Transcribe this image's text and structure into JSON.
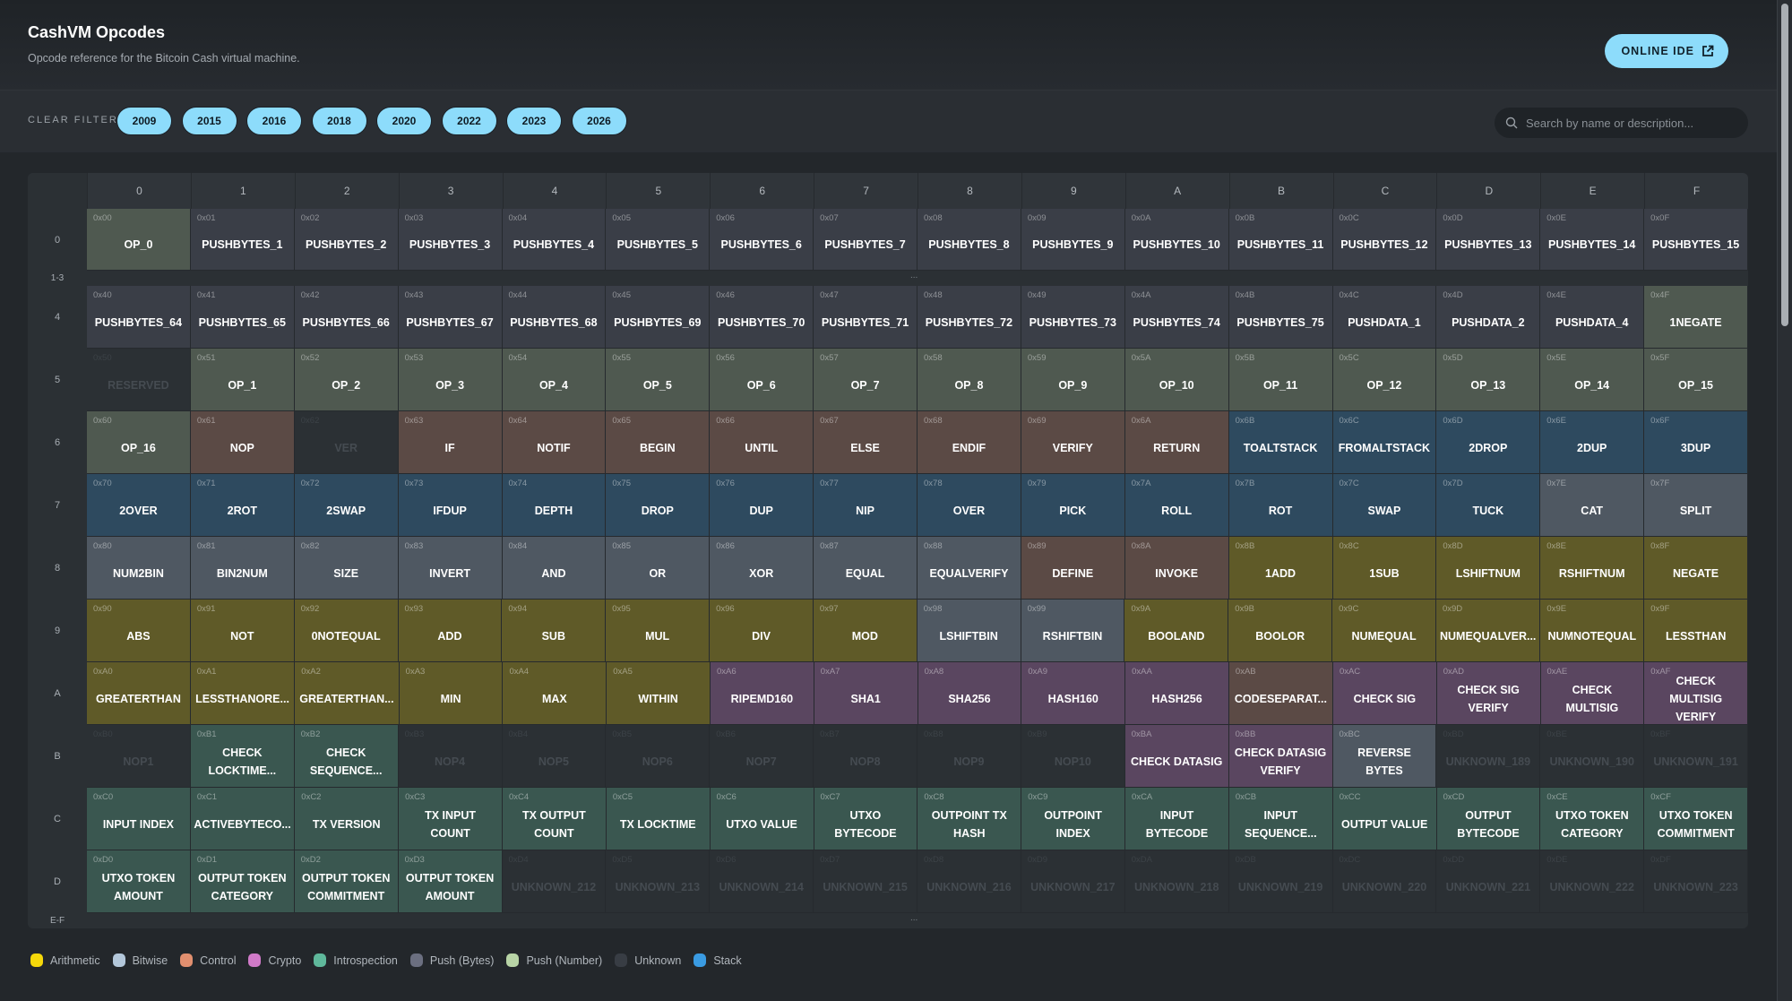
{
  "header": {
    "title": "CashVM Opcodes",
    "subtitle": "Opcode reference for the Bitcoin Cash virtual machine.",
    "ide_label": "ONLINE IDE",
    "ide_icon": "external-link-icon"
  },
  "filter": {
    "clear_label": "CLEAR FILTER",
    "years": [
      "2009",
      "2015",
      "2016",
      "2018",
      "2020",
      "2022",
      "2023",
      "2026"
    ],
    "search_placeholder": "Search by name or description..."
  },
  "columns": [
    "0",
    "1",
    "2",
    "3",
    "4",
    "5",
    "6",
    "7",
    "8",
    "9",
    "A",
    "B",
    "C",
    "D",
    "E",
    "F"
  ],
  "gaps": {
    "g1": "1-3",
    "g2": "E-F",
    "dots": "..."
  },
  "category_colors": {
    "pushbytes": "#3a3e47",
    "pushnum": "#4f5950",
    "control": "#5b4a45",
    "stack": "#2e4a5f",
    "bitwise": "#4f5862",
    "arith": "#5f5a28",
    "crypto": "#5a4660",
    "intro": "#3a5750",
    "unknown": "#2b3034"
  },
  "rows": [
    {
      "label": "0",
      "cells": [
        [
          "0x00",
          "OP_0",
          "pushnum"
        ],
        [
          "0x01",
          "PUSHBYTES_1",
          "pushbytes"
        ],
        [
          "0x02",
          "PUSHBYTES_2",
          "pushbytes"
        ],
        [
          "0x03",
          "PUSHBYTES_3",
          "pushbytes"
        ],
        [
          "0x04",
          "PUSHBYTES_4",
          "pushbytes"
        ],
        [
          "0x05",
          "PUSHBYTES_5",
          "pushbytes"
        ],
        [
          "0x06",
          "PUSHBYTES_6",
          "pushbytes"
        ],
        [
          "0x07",
          "PUSHBYTES_7",
          "pushbytes"
        ],
        [
          "0x08",
          "PUSHBYTES_8",
          "pushbytes"
        ],
        [
          "0x09",
          "PUSHBYTES_9",
          "pushbytes"
        ],
        [
          "0x0A",
          "PUSHBYTES_10",
          "pushbytes"
        ],
        [
          "0x0B",
          "PUSHBYTES_11",
          "pushbytes"
        ],
        [
          "0x0C",
          "PUSHBYTES_12",
          "pushbytes"
        ],
        [
          "0x0D",
          "PUSHBYTES_13",
          "pushbytes"
        ],
        [
          "0x0E",
          "PUSHBYTES_14",
          "pushbytes"
        ],
        [
          "0x0F",
          "PUSHBYTES_15",
          "pushbytes"
        ]
      ]
    },
    {
      "label": "4",
      "cells": [
        [
          "0x40",
          "PUSHBYTES_64",
          "pushbytes"
        ],
        [
          "0x41",
          "PUSHBYTES_65",
          "pushbytes"
        ],
        [
          "0x42",
          "PUSHBYTES_66",
          "pushbytes"
        ],
        [
          "0x43",
          "PUSHBYTES_67",
          "pushbytes"
        ],
        [
          "0x44",
          "PUSHBYTES_68",
          "pushbytes"
        ],
        [
          "0x45",
          "PUSHBYTES_69",
          "pushbytes"
        ],
        [
          "0x46",
          "PUSHBYTES_70",
          "pushbytes"
        ],
        [
          "0x47",
          "PUSHBYTES_71",
          "pushbytes"
        ],
        [
          "0x48",
          "PUSHBYTES_72",
          "pushbytes"
        ],
        [
          "0x49",
          "PUSHBYTES_73",
          "pushbytes"
        ],
        [
          "0x4A",
          "PUSHBYTES_74",
          "pushbytes"
        ],
        [
          "0x4B",
          "PUSHBYTES_75",
          "pushbytes"
        ],
        [
          "0x4C",
          "PUSHDATA_1",
          "pushbytes"
        ],
        [
          "0x4D",
          "PUSHDATA_2",
          "pushbytes"
        ],
        [
          "0x4E",
          "PUSHDATA_4",
          "pushbytes"
        ],
        [
          "0x4F",
          "1NEGATE",
          "pushnum"
        ]
      ]
    },
    {
      "label": "5",
      "cells": [
        [
          "0x50",
          "RESERVED",
          "unknown"
        ],
        [
          "0x51",
          "OP_1",
          "pushnum"
        ],
        [
          "0x52",
          "OP_2",
          "pushnum"
        ],
        [
          "0x53",
          "OP_3",
          "pushnum"
        ],
        [
          "0x54",
          "OP_4",
          "pushnum"
        ],
        [
          "0x55",
          "OP_5",
          "pushnum"
        ],
        [
          "0x56",
          "OP_6",
          "pushnum"
        ],
        [
          "0x57",
          "OP_7",
          "pushnum"
        ],
        [
          "0x58",
          "OP_8",
          "pushnum"
        ],
        [
          "0x59",
          "OP_9",
          "pushnum"
        ],
        [
          "0x5A",
          "OP_10",
          "pushnum"
        ],
        [
          "0x5B",
          "OP_11",
          "pushnum"
        ],
        [
          "0x5C",
          "OP_12",
          "pushnum"
        ],
        [
          "0x5D",
          "OP_13",
          "pushnum"
        ],
        [
          "0x5E",
          "OP_14",
          "pushnum"
        ],
        [
          "0x5F",
          "OP_15",
          "pushnum"
        ]
      ]
    },
    {
      "label": "6",
      "cells": [
        [
          "0x60",
          "OP_16",
          "pushnum"
        ],
        [
          "0x61",
          "NOP",
          "control"
        ],
        [
          "0x62",
          "VER",
          "unknown"
        ],
        [
          "0x63",
          "IF",
          "control"
        ],
        [
          "0x64",
          "NOTIF",
          "control"
        ],
        [
          "0x65",
          "BEGIN",
          "control"
        ],
        [
          "0x66",
          "UNTIL",
          "control"
        ],
        [
          "0x67",
          "ELSE",
          "control"
        ],
        [
          "0x68",
          "ENDIF",
          "control"
        ],
        [
          "0x69",
          "VERIFY",
          "control"
        ],
        [
          "0x6A",
          "RETURN",
          "control"
        ],
        [
          "0x6B",
          "TOALTSTACK",
          "stack"
        ],
        [
          "0x6C",
          "FROMALTSTACK",
          "stack"
        ],
        [
          "0x6D",
          "2DROP",
          "stack"
        ],
        [
          "0x6E",
          "2DUP",
          "stack"
        ],
        [
          "0x6F",
          "3DUP",
          "stack"
        ]
      ]
    },
    {
      "label": "7",
      "cells": [
        [
          "0x70",
          "2OVER",
          "stack"
        ],
        [
          "0x71",
          "2ROT",
          "stack"
        ],
        [
          "0x72",
          "2SWAP",
          "stack"
        ],
        [
          "0x73",
          "IFDUP",
          "stack"
        ],
        [
          "0x74",
          "DEPTH",
          "stack"
        ],
        [
          "0x75",
          "DROP",
          "stack"
        ],
        [
          "0x76",
          "DUP",
          "stack"
        ],
        [
          "0x77",
          "NIP",
          "stack"
        ],
        [
          "0x78",
          "OVER",
          "stack"
        ],
        [
          "0x79",
          "PICK",
          "stack"
        ],
        [
          "0x7A",
          "ROLL",
          "stack"
        ],
        [
          "0x7B",
          "ROT",
          "stack"
        ],
        [
          "0x7C",
          "SWAP",
          "stack"
        ],
        [
          "0x7D",
          "TUCK",
          "stack"
        ],
        [
          "0x7E",
          "CAT",
          "bitwise"
        ],
        [
          "0x7F",
          "SPLIT",
          "bitwise"
        ]
      ]
    },
    {
      "label": "8",
      "cells": [
        [
          "0x80",
          "NUM2BIN",
          "bitwise"
        ],
        [
          "0x81",
          "BIN2NUM",
          "bitwise"
        ],
        [
          "0x82",
          "SIZE",
          "bitwise"
        ],
        [
          "0x83",
          "INVERT",
          "bitwise"
        ],
        [
          "0x84",
          "AND",
          "bitwise"
        ],
        [
          "0x85",
          "OR",
          "bitwise"
        ],
        [
          "0x86",
          "XOR",
          "bitwise"
        ],
        [
          "0x87",
          "EQUAL",
          "bitwise"
        ],
        [
          "0x88",
          "EQUALVERIFY",
          "bitwise"
        ],
        [
          "0x89",
          "DEFINE",
          "control"
        ],
        [
          "0x8A",
          "INVOKE",
          "control"
        ],
        [
          "0x8B",
          "1ADD",
          "arith"
        ],
        [
          "0x8C",
          "1SUB",
          "arith"
        ],
        [
          "0x8D",
          "LSHIFTNUM",
          "arith"
        ],
        [
          "0x8E",
          "RSHIFTNUM",
          "arith"
        ],
        [
          "0x8F",
          "NEGATE",
          "arith"
        ]
      ]
    },
    {
      "label": "9",
      "cells": [
        [
          "0x90",
          "ABS",
          "arith"
        ],
        [
          "0x91",
          "NOT",
          "arith"
        ],
        [
          "0x92",
          "0NOTEQUAL",
          "arith"
        ],
        [
          "0x93",
          "ADD",
          "arith"
        ],
        [
          "0x94",
          "SUB",
          "arith"
        ],
        [
          "0x95",
          "MUL",
          "arith"
        ],
        [
          "0x96",
          "DIV",
          "arith"
        ],
        [
          "0x97",
          "MOD",
          "arith"
        ],
        [
          "0x98",
          "LSHIFTBIN",
          "bitwise"
        ],
        [
          "0x99",
          "RSHIFTBIN",
          "bitwise"
        ],
        [
          "0x9A",
          "BOOLAND",
          "arith"
        ],
        [
          "0x9B",
          "BOOLOR",
          "arith"
        ],
        [
          "0x9C",
          "NUMEQUAL",
          "arith"
        ],
        [
          "0x9D",
          "NUMEQUALVER...",
          "arith"
        ],
        [
          "0x9E",
          "NUMNOTEQUAL",
          "arith"
        ],
        [
          "0x9F",
          "LESSTHAN",
          "arith"
        ]
      ]
    },
    {
      "label": "A",
      "cells": [
        [
          "0xA0",
          "GREATERTHAN",
          "arith"
        ],
        [
          "0xA1",
          "LESSTHANORE...",
          "arith"
        ],
        [
          "0xA2",
          "GREATERTHAN...",
          "arith"
        ],
        [
          "0xA3",
          "MIN",
          "arith"
        ],
        [
          "0xA4",
          "MAX",
          "arith"
        ],
        [
          "0xA5",
          "WITHIN",
          "arith"
        ],
        [
          "0xA6",
          "RIPEMD160",
          "crypto"
        ],
        [
          "0xA7",
          "SHA1",
          "crypto"
        ],
        [
          "0xA8",
          "SHA256",
          "crypto"
        ],
        [
          "0xA9",
          "HASH160",
          "crypto"
        ],
        [
          "0xAA",
          "HASH256",
          "crypto"
        ],
        [
          "0xAB",
          "CODESEPARAT...",
          "control"
        ],
        [
          "0xAC",
          "CHECK SIG",
          "crypto"
        ],
        [
          "0xAD",
          "CHECK SIG VERIFY",
          "crypto"
        ],
        [
          "0xAE",
          "CHECK MULTISIG",
          "crypto"
        ],
        [
          "0xAF",
          "CHECK MULTISIG VERIFY",
          "crypto"
        ]
      ]
    },
    {
      "label": "B",
      "cells": [
        [
          "0xB0",
          "NOP1",
          "unknown"
        ],
        [
          "0xB1",
          "CHECK LOCKTIME...",
          "intro"
        ],
        [
          "0xB2",
          "CHECK SEQUENCE...",
          "intro"
        ],
        [
          "0xB3",
          "NOP4",
          "unknown"
        ],
        [
          "0xB4",
          "NOP5",
          "unknown"
        ],
        [
          "0xB5",
          "NOP6",
          "unknown"
        ],
        [
          "0xB6",
          "NOP7",
          "unknown"
        ],
        [
          "0xB7",
          "NOP8",
          "unknown"
        ],
        [
          "0xB8",
          "NOP9",
          "unknown"
        ],
        [
          "0xB9",
          "NOP10",
          "unknown"
        ],
        [
          "0xBA",
          "CHECK DATASIG",
          "crypto"
        ],
        [
          "0xBB",
          "CHECK DATASIG VERIFY",
          "crypto"
        ],
        [
          "0xBC",
          "REVERSE BYTES",
          "bitwise"
        ],
        [
          "0xBD",
          "UNKNOWN_189",
          "unknown"
        ],
        [
          "0xBE",
          "UNKNOWN_190",
          "unknown"
        ],
        [
          "0xBF",
          "UNKNOWN_191",
          "unknown"
        ]
      ]
    },
    {
      "label": "C",
      "cells": [
        [
          "0xC0",
          "INPUT INDEX",
          "intro"
        ],
        [
          "0xC1",
          "ACTIVEBYTECO...",
          "intro"
        ],
        [
          "0xC2",
          "TX VERSION",
          "intro"
        ],
        [
          "0xC3",
          "TX INPUT COUNT",
          "intro"
        ],
        [
          "0xC4",
          "TX OUTPUT COUNT",
          "intro"
        ],
        [
          "0xC5",
          "TX LOCKTIME",
          "intro"
        ],
        [
          "0xC6",
          "UTXO VALUE",
          "intro"
        ],
        [
          "0xC7",
          "UTXO BYTECODE",
          "intro"
        ],
        [
          "0xC8",
          "OUTPOINT TX HASH",
          "intro"
        ],
        [
          "0xC9",
          "OUTPOINT INDEX",
          "intro"
        ],
        [
          "0xCA",
          "INPUT BYTECODE",
          "intro"
        ],
        [
          "0xCB",
          "INPUT SEQUENCE...",
          "intro"
        ],
        [
          "0xCC",
          "OUTPUT VALUE",
          "intro"
        ],
        [
          "0xCD",
          "OUTPUT BYTECODE",
          "intro"
        ],
        [
          "0xCE",
          "UTXO TOKEN CATEGORY",
          "intro"
        ],
        [
          "0xCF",
          "UTXO TOKEN COMMITMENT",
          "intro"
        ]
      ]
    },
    {
      "label": "D",
      "cells": [
        [
          "0xD0",
          "UTXO TOKEN AMOUNT",
          "intro"
        ],
        [
          "0xD1",
          "OUTPUT TOKEN CATEGORY",
          "intro"
        ],
        [
          "0xD2",
          "OUTPUT TOKEN COMMITMENT",
          "intro"
        ],
        [
          "0xD3",
          "OUTPUT TOKEN AMOUNT",
          "intro"
        ],
        [
          "0xD4",
          "UNKNOWN_212",
          "unknown"
        ],
        [
          "0xD5",
          "UNKNOWN_213",
          "unknown"
        ],
        [
          "0xD6",
          "UNKNOWN_214",
          "unknown"
        ],
        [
          "0xD7",
          "UNKNOWN_215",
          "unknown"
        ],
        [
          "0xD8",
          "UNKNOWN_216",
          "unknown"
        ],
        [
          "0xD9",
          "UNKNOWN_217",
          "unknown"
        ],
        [
          "0xDA",
          "UNKNOWN_218",
          "unknown"
        ],
        [
          "0xDB",
          "UNKNOWN_219",
          "unknown"
        ],
        [
          "0xDC",
          "UNKNOWN_220",
          "unknown"
        ],
        [
          "0xDD",
          "UNKNOWN_221",
          "unknown"
        ],
        [
          "0xDE",
          "UNKNOWN_222",
          "unknown"
        ],
        [
          "0xDF",
          "UNKNOWN_223",
          "unknown"
        ]
      ]
    }
  ],
  "legend": [
    {
      "label": "Arithmetic",
      "color": "#f5d80a"
    },
    {
      "label": "Bitwise",
      "color": "#b3c7da"
    },
    {
      "label": "Control",
      "color": "#e18f6f"
    },
    {
      "label": "Crypto",
      "color": "#d07ac8"
    },
    {
      "label": "Introspection",
      "color": "#5fb89b"
    },
    {
      "label": "Push (Bytes)",
      "color": "#6b6f80"
    },
    {
      "label": "Push (Number)",
      "color": "#b8d4a6"
    },
    {
      "label": "Unknown",
      "color": "#383d44"
    },
    {
      "label": "Stack",
      "color": "#3a9be2"
    }
  ]
}
